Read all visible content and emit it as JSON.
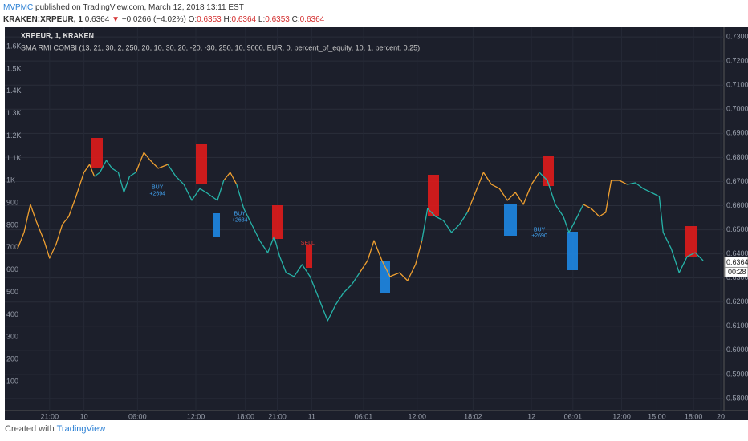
{
  "header": {
    "author": "MVPMC",
    "published": "published on TradingView.com, March 12, 2018 13:11 EST",
    "symbol": "KRAKEN:XRPEUR, 1",
    "last": "0.6364",
    "arrow": "▼",
    "change": "−0.0266 (−4.02%)",
    "o_label": "O:",
    "o": "0.6353",
    "h_label": "H:",
    "h": "0.6364",
    "l_label": "L:",
    "l": "0.6353",
    "c_label": "C:",
    "c": "0.6364"
  },
  "chart_data": {
    "type": "line",
    "title": "XRPEUR, 1, KRAKEN",
    "subtitle": "SMA RMI COMBI (13, 21, 30, 2, 250, 20, 10, 30, 20, -20, -30, 250, 10, 9000, EUR, 0, percent_of_equity, 10, 1, percent, 0.25)",
    "x": [
      0,
      8,
      16,
      23,
      33,
      40,
      48,
      56,
      64,
      73,
      83,
      90,
      96,
      103,
      111,
      118,
      126,
      133,
      140,
      148,
      158,
      166,
      176,
      188,
      198,
      208,
      218,
      228,
      236,
      243,
      250,
      258,
      266,
      274,
      283,
      293,
      303,
      313,
      321,
      328,
      336,
      346,
      356,
      366,
      376,
      388,
      398,
      408,
      418,
      428,
      438,
      446,
      456,
      466,
      478,
      488,
      498,
      506,
      513,
      523,
      533,
      543,
      553,
      563,
      573,
      583,
      593,
      603,
      613,
      623,
      633,
      643,
      653,
      663,
      673,
      683,
      690,
      698,
      708,
      718,
      728,
      736,
      743,
      753,
      763,
      773,
      783,
      793,
      803,
      808,
      818,
      828,
      838,
      848,
      858
    ],
    "series": [
      {
        "color": "#f0a030",
        "axis": "y2",
        "values": [
          0.6422,
          0.6489,
          0.6605,
          0.6538,
          0.6455,
          0.6382,
          0.6439,
          0.6522,
          0.6555,
          0.6638,
          0.6738,
          0.6771,
          0.6721,
          null,
          null,
          null,
          null,
          null,
          null,
          0.6738,
          0.6821,
          0.6788,
          0.6755,
          0.6771,
          null,
          null,
          null,
          null,
          null,
          null,
          null,
          0.6705,
          0.6738,
          0.6688,
          null,
          null,
          null,
          null,
          null,
          null,
          null,
          null,
          null,
          null,
          null,
          null,
          null,
          null,
          null,
          0.6322,
          0.6372,
          0.6455,
          0.6372,
          0.6306,
          0.6322,
          0.6289,
          0.6356,
          0.6455,
          null,
          null,
          null,
          null,
          null,
          0.6572,
          0.6655,
          0.6738,
          0.6688,
          0.6671,
          0.6622,
          0.6655,
          0.6605,
          0.6688,
          0.6738,
          null,
          null,
          null,
          null,
          null,
          0.6605,
          0.6588,
          0.6555,
          0.6572,
          0.6705,
          0.6705,
          0.6688,
          null,
          null,
          null,
          null,
          null,
          null,
          null,
          null,
          null,
          null
        ]
      },
      {
        "color": "#26b3a8",
        "axis": "y2",
        "values": [
          null,
          null,
          null,
          null,
          null,
          null,
          null,
          null,
          null,
          null,
          null,
          null,
          0.6721,
          0.6738,
          0.6788,
          0.6755,
          0.6738,
          0.6655,
          0.6721,
          0.6738,
          null,
          null,
          null,
          0.6771,
          0.6721,
          0.6688,
          0.6622,
          0.6671,
          0.6655,
          0.6638,
          0.6622,
          0.6705,
          null,
          0.6688,
          0.6588,
          0.6522,
          0.6455,
          0.6405,
          0.6472,
          0.6389,
          0.6322,
          0.6306,
          0.6356,
          0.6306,
          0.6223,
          0.6123,
          0.6189,
          0.6239,
          0.6272,
          0.6322,
          null,
          null,
          null,
          null,
          null,
          null,
          null,
          0.6455,
          0.6588,
          0.6555,
          0.6538,
          0.6489,
          0.6522,
          0.6572,
          null,
          null,
          null,
          null,
          null,
          null,
          null,
          null,
          0.6738,
          0.6705,
          0.6605,
          0.6555,
          0.6489,
          0.6538,
          0.6605,
          null,
          null,
          null,
          null,
          null,
          0.6688,
          0.6695,
          0.6671,
          0.6655,
          0.6638,
          0.6489,
          0.6422,
          0.6322,
          0.6389,
          0.6405,
          0.6372
        ]
      }
    ],
    "xlim": [
      0,
      882
    ],
    "xticks": [
      {
        "value": 40,
        "label": "21:00"
      },
      {
        "value": 83,
        "label": "10"
      },
      {
        "value": 150,
        "label": "06:00"
      },
      {
        "value": 223,
        "label": "12:00"
      },
      {
        "value": 285,
        "label": "18:00"
      },
      {
        "value": 325,
        "label": "21:00"
      },
      {
        "value": 368,
        "label": "11"
      },
      {
        "value": 433,
        "label": "06:01"
      },
      {
        "value": 500,
        "label": "12:00"
      },
      {
        "value": 570,
        "label": "18:02"
      },
      {
        "value": 643,
        "label": "12"
      },
      {
        "value": 695,
        "label": "06:01"
      },
      {
        "value": 756,
        "label": "12:00"
      },
      {
        "value": 800,
        "label": "15:00"
      },
      {
        "value": 846,
        "label": "18:00"
      },
      {
        "value": 880,
        "label": "20"
      }
    ],
    "ylim": [
      -29,
      1672
    ],
    "yticks": [
      100,
      200,
      300,
      400,
      500,
      600,
      700,
      800,
      900,
      {
        "value": 1000,
        "label": "1K"
      },
      {
        "value": 1100,
        "label": "1.1K"
      },
      {
        "value": 1200,
        "label": "1.2K"
      },
      {
        "value": 1300,
        "label": "1.3K"
      },
      {
        "value": 1400,
        "label": "1.4K"
      },
      {
        "value": 1500,
        "label": "1.5K"
      },
      {
        "value": 1600,
        "label": "1.6K"
      }
    ],
    "y2lim": [
      0.575,
      0.7327
    ],
    "y2ticks": [
      {
        "value": 0.58,
        "label": "0.5800"
      },
      {
        "value": 0.59,
        "label": "0.5900"
      },
      {
        "value": 0.6,
        "label": "0.6000"
      },
      {
        "value": 0.61,
        "label": "0.6100"
      },
      {
        "value": 0.62,
        "label": "0.6200"
      },
      {
        "value": 0.63,
        "label": "0.6300"
      },
      {
        "value": 0.64,
        "label": "0.6400"
      },
      {
        "value": 0.65,
        "label": "0.6500"
      },
      {
        "value": 0.66,
        "label": "0.6600"
      },
      {
        "value": 0.67,
        "label": "0.6700"
      },
      {
        "value": 0.68,
        "label": "0.6800"
      },
      {
        "value": 0.69,
        "label": "0.6900"
      },
      {
        "value": 0.7,
        "label": "0.7000"
      },
      {
        "value": 0.71,
        "label": "0.7100"
      },
      {
        "value": 0.72,
        "label": "0.7200"
      },
      {
        "value": 0.73,
        "label": "0.7300"
      }
    ],
    "grid": true,
    "last_price": 0.6364,
    "countdown": "00:28",
    "annotations": [
      {
        "x": 175,
        "y": 0.6676,
        "text": "BUY"
      },
      {
        "x": 175,
        "y": 0.665,
        "text": "+2694"
      },
      {
        "x": 278,
        "y": 0.6566,
        "text": "BUY"
      },
      {
        "x": 278,
        "y": 0.654,
        "text": "+2634"
      },
      {
        "x": 363,
        "y": 0.6445,
        "text": "SELL"
      },
      {
        "x": 653,
        "y": 0.65,
        "text": "BUY"
      },
      {
        "x": 653,
        "y": 0.6475,
        "text": "+2690"
      }
    ]
  },
  "footer": {
    "created": "Created with",
    "brand": "TradingView"
  }
}
